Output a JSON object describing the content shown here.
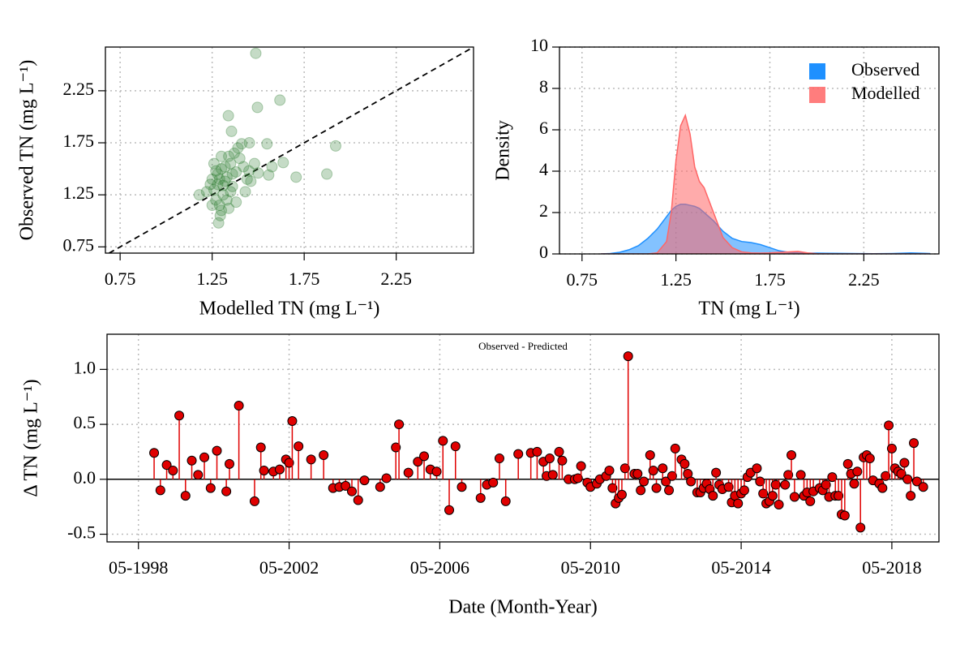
{
  "chart_data": [
    {
      "type": "scatter",
      "xlabel": "Modelled TN (mg L⁻¹)",
      "ylabel": "Observed TN (mg L⁻¹)",
      "xlim": [
        0.67,
        2.67
      ],
      "ylim": [
        0.69,
        2.67
      ],
      "xticks": [
        0.75,
        1.25,
        1.75,
        2.25
      ],
      "yticks": [
        0.75,
        1.25,
        1.75,
        2.25
      ],
      "grid": true,
      "diagonal": true,
      "color": "#2e7d32",
      "x": [
        1.487,
        1.618,
        1.496,
        1.338,
        1.355,
        1.548,
        1.921,
        1.452,
        1.873,
        1.706,
        1.636,
        1.575,
        1.557,
        1.294,
        1.285,
        1.18,
        1.26,
        1.28,
        1.3,
        1.32,
        1.27,
        1.29,
        1.31,
        1.33,
        1.35,
        1.36,
        1.38,
        1.4,
        1.42,
        1.44,
        1.37,
        1.39,
        1.41,
        1.34,
        1.25,
        1.24,
        1.22,
        1.26,
        1.28,
        1.3,
        1.33,
        1.35,
        1.3,
        1.45,
        1.48,
        1.43,
        1.38,
        1.27,
        1.25,
        1.29,
        1.32,
        1.36,
        1.31,
        1.46,
        1.5,
        1.34
      ],
      "values": [
        2.61,
        2.16,
        2.09,
        2.01,
        1.86,
        1.74,
        1.72,
        1.75,
        1.45,
        1.42,
        1.56,
        1.52,
        1.44,
        1.05,
        0.98,
        1.25,
        1.3,
        1.45,
        1.5,
        1.38,
        1.2,
        1.15,
        1.25,
        1.42,
        1.55,
        1.33,
        1.47,
        1.6,
        1.52,
        1.4,
        1.65,
        1.7,
        1.74,
        1.62,
        1.4,
        1.35,
        1.28,
        1.55,
        1.35,
        1.1,
        1.2,
        1.28,
        1.62,
        1.48,
        1.55,
        1.28,
        1.18,
        1.48,
        1.15,
        1.4,
        1.52,
        1.45,
        1.34,
        1.38,
        1.46,
        1.12
      ]
    },
    {
      "type": "area",
      "xlabel": "TN (mg L⁻¹)",
      "ylabel": "Density",
      "xlim": [
        0.63,
        2.65
      ],
      "ylim": [
        0,
        10
      ],
      "xticks": [
        0.75,
        1.25,
        1.75,
        2.25
      ],
      "yticks": [
        0,
        2,
        4,
        6,
        8,
        10
      ],
      "grid": true,
      "legend": "upper right",
      "x": [
        0.85,
        0.9,
        0.95,
        1.0,
        1.05,
        1.1,
        1.15,
        1.2,
        1.225,
        1.25,
        1.275,
        1.3,
        1.325,
        1.35,
        1.375,
        1.4,
        1.45,
        1.5,
        1.55,
        1.6,
        1.65,
        1.7,
        1.75,
        1.8,
        1.85,
        1.9,
        1.95,
        2.0,
        2.1,
        2.2,
        2.3,
        2.4,
        2.5,
        2.6
      ],
      "series": [
        {
          "name": "Observed",
          "color": "#1e90ff",
          "values": [
            0,
            0.02,
            0.08,
            0.2,
            0.4,
            0.75,
            1.2,
            1.8,
            2.1,
            2.3,
            2.4,
            2.4,
            2.35,
            2.3,
            2.2,
            2.0,
            1.6,
            1.1,
            0.75,
            0.6,
            0.55,
            0.45,
            0.3,
            0.15,
            0.08,
            0.05,
            0.04,
            0.04,
            0.03,
            0.02,
            0.01,
            0.02,
            0.05,
            0.02
          ]
        },
        {
          "name": "Modelled",
          "color": "#ff6666",
          "values": [
            0,
            0,
            0,
            0,
            0,
            0,
            0.05,
            0.6,
            2.0,
            4.5,
            6.2,
            6.7,
            5.8,
            4.2,
            3.5,
            3.2,
            2.0,
            0.8,
            0.3,
            0.1,
            0.05,
            0.04,
            0.05,
            0.08,
            0.1,
            0.12,
            0.05,
            0.01,
            0,
            0,
            0,
            0,
            0,
            0
          ]
        }
      ]
    },
    {
      "type": "stem",
      "xlabel": "Date (Month-Year)",
      "ylabel": "Δ TN (mg L⁻¹)",
      "annotation": "Observed - Predicted",
      "xlim": [
        "07-1997",
        "08-2019"
      ],
      "ylim": [
        -0.57,
        1.32
      ],
      "xticks": [
        "05-1998",
        "05-2002",
        "05-2006",
        "05-2010",
        "05-2014",
        "05-2018"
      ],
      "yticks": [
        -0.5,
        {
          "value": 0,
          "label": "0.0"
        },
        0.5,
        {
          "value": 1,
          "label": "1.0"
        }
      ],
      "grid": true,
      "color": "#e00000",
      "x": [
        "10-1998",
        "12-1998",
        "02-1999",
        "04-1999",
        "06-1999",
        "08-1999",
        "10-1999",
        "12-1999",
        "02-2000",
        "04-2000",
        "06-2000",
        "09-2000",
        "10-2000",
        "01-2001",
        "06-2001",
        "08-2001",
        "09-2001",
        "12-2001",
        "02-2002",
        "04-2002",
        "05-2002",
        "06-2002",
        "08-2002",
        "12-2002",
        "04-2003",
        "07-2003",
        "09-2003",
        "11-2003",
        "01-2004",
        "03-2004",
        "05-2004",
        "10-2004",
        "12-2004",
        "03-2005",
        "04-2005",
        "07-2005",
        "10-2005",
        "12-2005",
        "02-2006",
        "04-2006",
        "06-2006",
        "08-2006",
        "10-2006",
        "12-2006",
        "06-2007",
        "08-2007",
        "10-2007",
        "12-2007",
        "02-2008",
        "06-2008",
        "10-2008",
        "12-2008",
        "02-2009",
        "03-2009",
        "04-2009",
        "05-2009",
        "07-2009",
        "08-2009",
        "10-2009",
        "12-2009",
        "01-2010",
        "02-2010",
        "04-2010",
        "05-2010",
        "07-2010",
        "08-2010",
        "10-2010",
        "11-2010",
        "12-2010",
        "01-2011",
        "02-2011",
        "03-2011",
        "04-2011",
        "05-2011",
        "07-2011",
        "08-2011",
        "09-2011",
        "10-2011",
        "12-2011",
        "01-2012",
        "02-2012",
        "04-2012",
        "05-2012",
        "06-2012",
        "07-2012",
        "08-2012",
        "10-2012",
        "11-2012",
        "12-2012",
        "01-2013",
        "03-2013",
        "04-2013",
        "05-2013",
        "06-2013",
        "07-2013",
        "08-2013",
        "09-2013",
        "10-2013",
        "11-2013",
        "01-2014",
        "02-2014",
        "03-2014",
        "04-2014",
        "05-2014",
        "06-2014",
        "07-2014",
        "08-2014",
        "10-2014",
        "11-2014",
        "12-2014",
        "01-2015",
        "02-2015",
        "03-2015",
        "04-2015",
        "05-2015",
        "07-2015",
        "08-2015",
        "09-2015",
        "10-2015",
        "12-2015",
        "01-2016",
        "02-2016",
        "03-2016",
        "04-2016",
        "06-2016",
        "07-2016",
        "08-2016",
        "09-2016",
        "10-2016",
        "11-2016",
        "12-2016",
        "01-2017",
        "02-2017",
        "03-2017",
        "04-2017",
        "05-2017",
        "06-2017",
        "07-2017",
        "08-2017",
        "09-2017",
        "10-2017",
        "11-2017",
        "01-2018",
        "02-2018",
        "03-2018",
        "04-2018",
        "05-2018",
        "06-2018",
        "07-2018",
        "08-2018",
        "09-2018",
        "10-2018",
        "11-2018",
        "12-2018",
        "01-2019",
        "03-2019"
      ],
      "values": [
        0.24,
        -0.1,
        0.13,
        0.08,
        0.58,
        -0.15,
        0.17,
        0.04,
        0.2,
        -0.08,
        0.26,
        -0.11,
        0.14,
        0.67,
        -0.2,
        0.29,
        0.08,
        0.07,
        0.09,
        0.18,
        0.15,
        0.53,
        0.3,
        0.18,
        0.22,
        -0.08,
        -0.07,
        -0.06,
        -0.11,
        -0.19,
        -0.01,
        -0.07,
        0.01,
        0.29,
        0.5,
        0.06,
        0.16,
        0.21,
        0.09,
        0.07,
        0.35,
        -0.28,
        0.3,
        -0.07,
        -0.17,
        -0.05,
        -0.03,
        0.19,
        -0.2,
        0.23,
        0.24,
        0.25,
        0.16,
        0.03,
        0.19,
        0.04,
        0.25,
        0.17,
        0,
        0,
        0.01,
        0.12,
        -0.03,
        -0.07,
        -0.04,
        0,
        0.03,
        0.08,
        -0.08,
        -0.22,
        -0.17,
        -0.14,
        0.1,
        1.12,
        0.05,
        0.05,
        -0.1,
        -0.02,
        0.22,
        0.08,
        -0.08,
        0.1,
        -0.02,
        -0.1,
        0.03,
        0.28,
        0.18,
        0.14,
        0.05,
        -0.02,
        -0.12,
        -0.12,
        -0.08,
        -0.04,
        -0.09,
        -0.15,
        0.06,
        -0.05,
        -0.09,
        -0.07,
        -0.21,
        -0.15,
        -0.22,
        -0.13,
        -0.1,
        0.02,
        0.06,
        0.1,
        -0.02,
        -0.13,
        -0.22,
        -0.2,
        -0.15,
        -0.05,
        -0.23,
        -0.05,
        0.04,
        0.22,
        -0.16,
        0.04,
        -0.15,
        -0.12,
        -0.2,
        -0.11,
        -0.08,
        -0.1,
        -0.05,
        -0.16,
        0.02,
        -0.15,
        -0.15,
        -0.32,
        -0.33,
        0.14,
        0.05,
        -0.04,
        0.07,
        -0.44,
        0.2,
        0.22,
        0.19,
        -0.01,
        -0.04,
        -0.08,
        0.03,
        0.49,
        0.28,
        0.1,
        0.07,
        0.05,
        0.15,
        0,
        -0.15,
        0.33,
        -0.02,
        -0.07
      ]
    }
  ]
}
